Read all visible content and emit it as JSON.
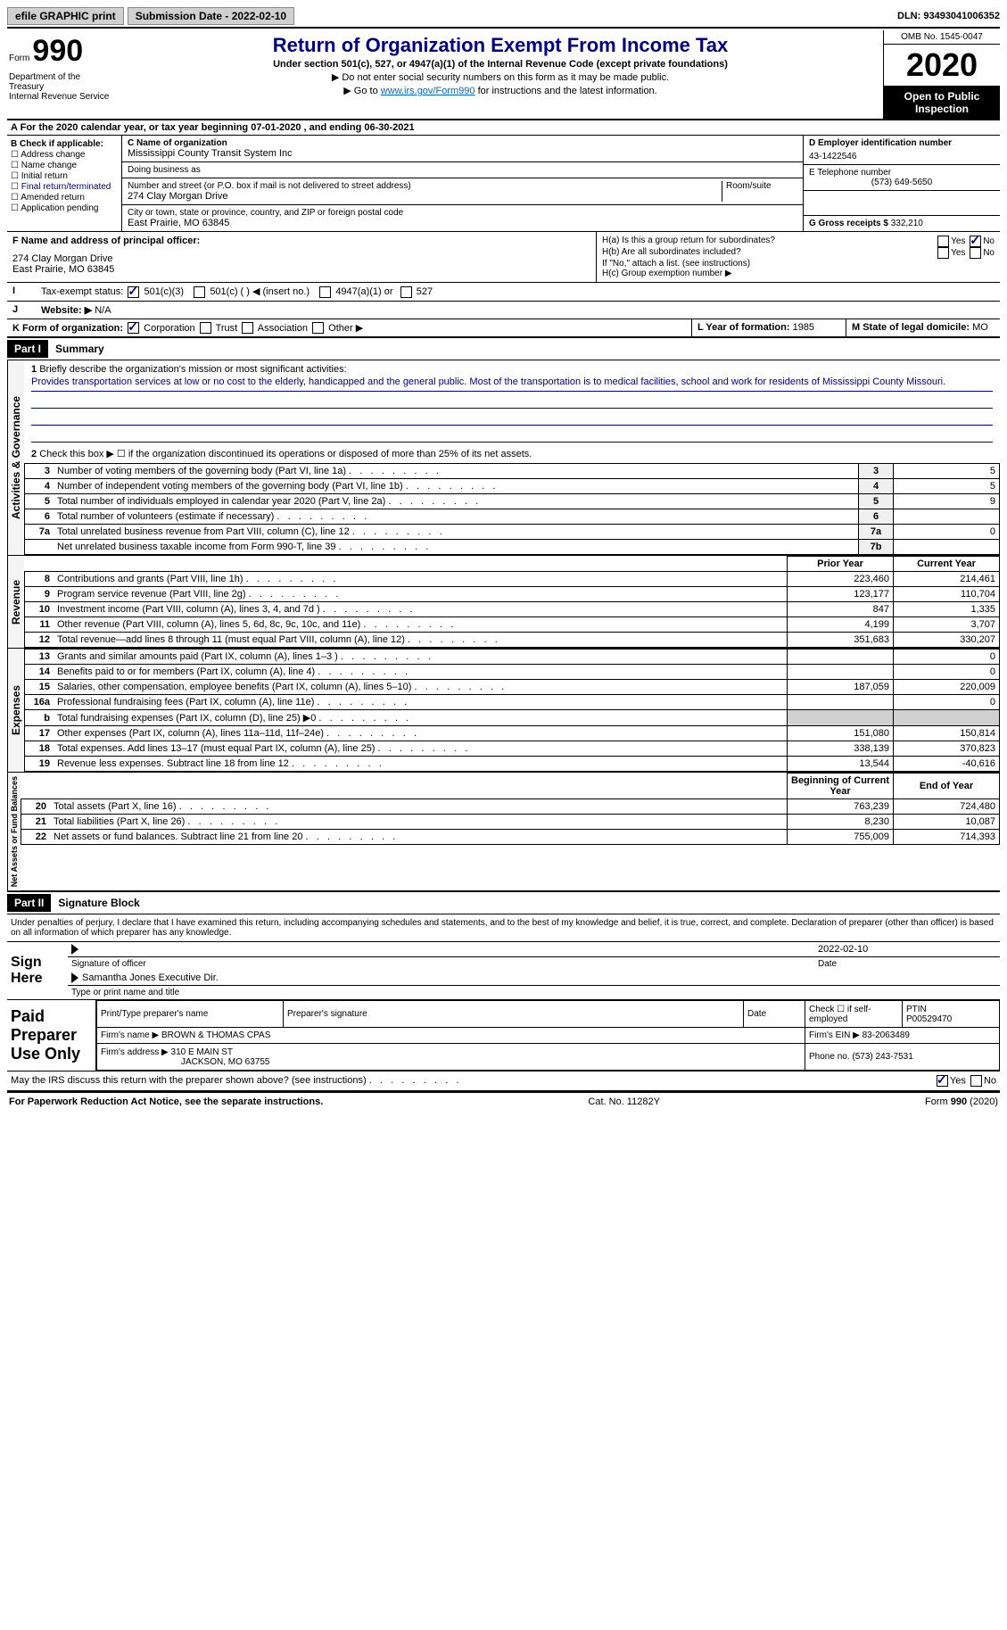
{
  "topbar": {
    "efile": "efile GRAPHIC print",
    "sub_label": "Submission Date - 2022-02-10",
    "dln": "DLN: 93493041006352"
  },
  "header": {
    "form_word": "Form",
    "form_num": "990",
    "dept": "Department of the Treasury\nInternal Revenue Service",
    "title": "Return of Organization Exempt From Income Tax",
    "sub": "Under section 501(c), 527, or 4947(a)(1) of the Internal Revenue Code (except private foundations)",
    "note1": "▶ Do not enter social security numbers on this form as it may be made public.",
    "note2_pre": "▶ Go to ",
    "note2_link": "www.irs.gov/Form990",
    "note2_post": " for instructions and the latest information.",
    "omb": "OMB No. 1545-0047",
    "year": "2020",
    "inspect": "Open to Public Inspection"
  },
  "line_a": "For the 2020 calendar year, or tax year beginning 07-01-2020  , and ending 06-30-2021",
  "box_b": {
    "hdr": "B Check if applicable:",
    "opts": [
      "Address change",
      "Name change",
      "Initial return",
      "Final return/terminated",
      "Amended return",
      "Application pending"
    ]
  },
  "box_c": {
    "name_lbl": "C Name of organization",
    "name": "Mississippi County Transit System Inc",
    "dba_lbl": "Doing business as",
    "street_lbl": "Number and street (or P.O. box if mail is not delivered to street address)",
    "room_lbl": "Room/suite",
    "street": "274 Clay Morgan Drive",
    "city_lbl": "City or town, state or province, country, and ZIP or foreign postal code",
    "city": "East Prairie, MO  63845"
  },
  "box_d": {
    "d_lbl": "D Employer identification number",
    "d_val": "43-1422546",
    "e_lbl": "E Telephone number",
    "e_val": "(573) 649-5650",
    "g_lbl": "G Gross receipts $",
    "g_val": "332,210"
  },
  "box_f": {
    "lbl": "F Name and address of principal officer:",
    "line1": "274 Clay Morgan Drive",
    "line2": "East Prairie, MO  63845"
  },
  "box_h": {
    "a": "H(a)  Is this a group return for subordinates?",
    "b": "H(b)  Are all subordinates included?",
    "note": "If \"No,\" attach a list. (see instructions)",
    "c": "H(c)  Group exemption number ▶"
  },
  "line_i": {
    "lbl": "Tax-exempt status:",
    "o1": "501(c)(3)",
    "o2": "501(c) (  ) ◀ (insert no.)",
    "o3": "4947(a)(1) or",
    "o4": "527"
  },
  "line_j": {
    "lbl": "Website: ▶",
    "val": "N/A"
  },
  "line_k": {
    "lbl": "K Form of organization:",
    "o1": "Corporation",
    "o2": "Trust",
    "o3": "Association",
    "o4": "Other ▶"
  },
  "line_l": {
    "lbl": "L Year of formation:",
    "val": "1985"
  },
  "line_m": {
    "lbl": "M State of legal domicile:",
    "val": "MO"
  },
  "part1": {
    "hdr": "Part I",
    "title": "Summary",
    "q1": "Briefly describe the organization's mission or most significant activities:",
    "mission": "Provides transportation services at low or no cost to the elderly, handicapped and the general public. Most of the transportation is to medical facilities, school and work for residents of Mississippi County Missouri.",
    "q2": "Check this box ▶ ☐  if the organization discontinued its operations or disposed of more than 25% of its net assets."
  },
  "governance_rows": [
    {
      "n": "3",
      "desc": "Number of voting members of the governing body (Part VI, line 1a)",
      "ref": "3",
      "val": "5"
    },
    {
      "n": "4",
      "desc": "Number of independent voting members of the governing body (Part VI, line 1b)",
      "ref": "4",
      "val": "5"
    },
    {
      "n": "5",
      "desc": "Total number of individuals employed in calendar year 2020 (Part V, line 2a)",
      "ref": "5",
      "val": "9"
    },
    {
      "n": "6",
      "desc": "Total number of volunteers (estimate if necessary)",
      "ref": "6",
      "val": ""
    },
    {
      "n": "7a",
      "desc": "Total unrelated business revenue from Part VIII, column (C), line 12",
      "ref": "7a",
      "val": "0"
    },
    {
      "n": "",
      "desc": "Net unrelated business taxable income from Form 990-T, line 39",
      "ref": "7b",
      "val": ""
    }
  ],
  "col_headers": {
    "prior": "Prior Year",
    "current": "Current Year",
    "begin": "Beginning of Current Year",
    "end": "End of Year"
  },
  "revenue_rows": [
    {
      "n": "8",
      "desc": "Contributions and grants (Part VIII, line 1h)",
      "p": "223,460",
      "c": "214,461"
    },
    {
      "n": "9",
      "desc": "Program service revenue (Part VIII, line 2g)",
      "p": "123,177",
      "c": "110,704"
    },
    {
      "n": "10",
      "desc": "Investment income (Part VIII, column (A), lines 3, 4, and 7d )",
      "p": "847",
      "c": "1,335"
    },
    {
      "n": "11",
      "desc": "Other revenue (Part VIII, column (A), lines 5, 6d, 8c, 9c, 10c, and 11e)",
      "p": "4,199",
      "c": "3,707"
    },
    {
      "n": "12",
      "desc": "Total revenue—add lines 8 through 11 (must equal Part VIII, column (A), line 12)",
      "p": "351,683",
      "c": "330,207"
    }
  ],
  "expense_rows": [
    {
      "n": "13",
      "desc": "Grants and similar amounts paid (Part IX, column (A), lines 1–3 )",
      "p": "",
      "c": "0"
    },
    {
      "n": "14",
      "desc": "Benefits paid to or for members (Part IX, column (A), line 4)",
      "p": "",
      "c": "0"
    },
    {
      "n": "15",
      "desc": "Salaries, other compensation, employee benefits (Part IX, column (A), lines 5–10)",
      "p": "187,059",
      "c": "220,009"
    },
    {
      "n": "16a",
      "desc": "Professional fundraising fees (Part IX, column (A), line 11e)",
      "p": "",
      "c": "0"
    },
    {
      "n": "b",
      "desc": "Total fundraising expenses (Part IX, column (D), line 25) ▶0",
      "p": "SHADE",
      "c": "SHADE"
    },
    {
      "n": "17",
      "desc": "Other expenses (Part IX, column (A), lines 11a–11d, 11f–24e)",
      "p": "151,080",
      "c": "150,814"
    },
    {
      "n": "18",
      "desc": "Total expenses. Add lines 13–17 (must equal Part IX, column (A), line 25)",
      "p": "338,139",
      "c": "370,823"
    },
    {
      "n": "19",
      "desc": "Revenue less expenses. Subtract line 18 from line 12",
      "p": "13,544",
      "c": "-40,616"
    }
  ],
  "netassets_rows": [
    {
      "n": "20",
      "desc": "Total assets (Part X, line 16)",
      "p": "763,239",
      "c": "724,480"
    },
    {
      "n": "21",
      "desc": "Total liabilities (Part X, line 26)",
      "p": "8,230",
      "c": "10,087"
    },
    {
      "n": "22",
      "desc": "Net assets or fund balances. Subtract line 21 from line 20",
      "p": "755,009",
      "c": "714,393"
    }
  ],
  "vert_labels": {
    "gov": "Activities & Governance",
    "rev": "Revenue",
    "exp": "Expenses",
    "net": "Net Assets or Fund Balances"
  },
  "part2": {
    "hdr": "Part II",
    "title": "Signature Block",
    "stmt": "Under penalties of perjury, I declare that I have examined this return, including accompanying schedules and statements, and to the best of my knowledge and belief, it is true, correct, and complete. Declaration of preparer (other than officer) is based on all information of which preparer has any knowledge."
  },
  "sign": {
    "label": "Sign Here",
    "sig_lbl": "Signature of officer",
    "date": "2022-02-10",
    "date_lbl": "Date",
    "name": "Samantha Jones Executive Dir.",
    "name_lbl": "Type or print name and title"
  },
  "preparer": {
    "label": "Paid Preparer Use Only",
    "print_lbl": "Print/Type preparer's name",
    "sig_lbl": "Preparer's signature",
    "date_lbl": "Date",
    "check_lbl": "Check ☐ if self-employed",
    "ptin_lbl": "PTIN",
    "ptin": "P00529470",
    "firm_lbl": "Firm's name   ▶",
    "firm": "BROWN & THOMAS CPAS",
    "ein_lbl": "Firm's EIN ▶",
    "ein": "83-2063489",
    "addr_lbl": "Firm's address ▶",
    "addr1": "310 E MAIN ST",
    "addr2": "JACKSON, MO  63755",
    "phone_lbl": "Phone no.",
    "phone": "(573) 243-7531"
  },
  "discuss": "May the IRS discuss this return with the preparer shown above? (see instructions)",
  "footer": {
    "pra": "For Paperwork Reduction Act Notice, see the separate instructions.",
    "cat": "Cat. No. 11282Y",
    "form": "Form 990 (2020)"
  }
}
